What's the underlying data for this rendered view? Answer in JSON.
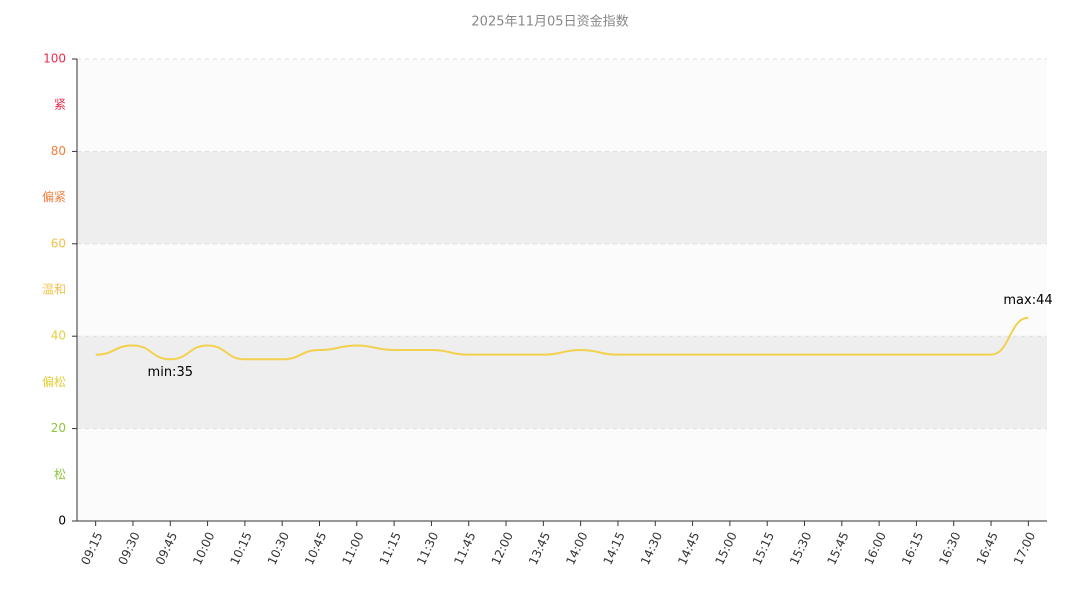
{
  "chart_data": {
    "type": "line",
    "title": "2025年11月05日资金指数",
    "categories": [
      "09:15",
      "09:30",
      "09:45",
      "10:00",
      "10:15",
      "10:30",
      "10:45",
      "11:00",
      "11:15",
      "11:30",
      "11:45",
      "12:00",
      "13:45",
      "14:00",
      "14:15",
      "14:30",
      "14:45",
      "15:00",
      "15:15",
      "15:30",
      "15:45",
      "16:00",
      "16:15",
      "16:30",
      "16:45",
      "17:00"
    ],
    "series": [
      {
        "name": "资金指数",
        "color": "#f2d14e",
        "values": [
          36,
          38,
          35,
          38,
          35,
          35,
          37,
          38,
          37,
          37,
          36,
          36,
          36,
          37,
          36,
          36,
          36,
          36,
          36,
          36,
          36,
          36,
          36,
          36,
          36,
          44
        ]
      }
    ],
    "min_label": "min:35",
    "max_label": "max:44",
    "ylim": [
      0,
      100
    ],
    "yticks": [
      0,
      20,
      40,
      60,
      80,
      100
    ],
    "ytick_colors": [
      "#000000",
      "#8cc63f",
      "#e6cf3c",
      "#f5c04a",
      "#f08040",
      "#ee2c4c"
    ],
    "grid": true,
    "bands": [
      {
        "from": 0,
        "to": 20,
        "label": "松",
        "color": "#8cc63f",
        "fill": "#fbfbfb"
      },
      {
        "from": 20,
        "to": 40,
        "label": "偏松",
        "color": "#e6cf3c",
        "fill": "#eeeeee"
      },
      {
        "from": 40,
        "to": 60,
        "label": "温和",
        "color": "#f5c04a",
        "fill": "#fbfbfb"
      },
      {
        "from": 60,
        "to": 80,
        "label": "偏紧",
        "color": "#f08040",
        "fill": "#eeeeee"
      },
      {
        "from": 80,
        "to": 100,
        "label": "紧",
        "color": "#ee2c4c",
        "fill": "#fbfbfb"
      }
    ]
  }
}
